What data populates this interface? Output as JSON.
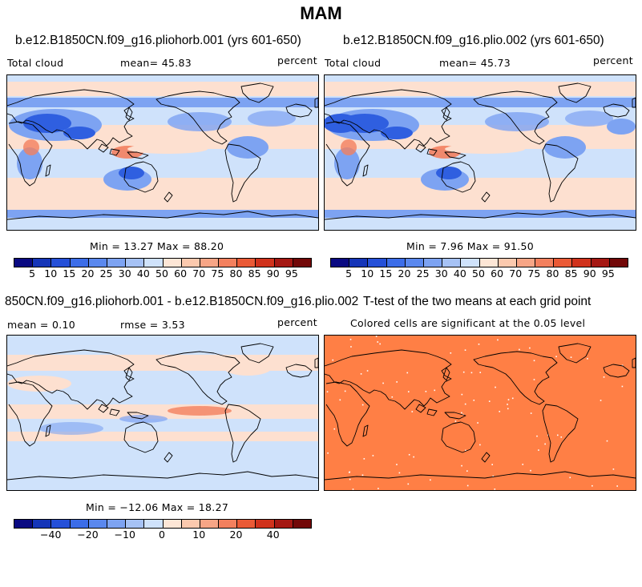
{
  "figure": {
    "title": "MAM"
  },
  "panels": {
    "p1": {
      "title": "b.e12.B1850CN.f09_g16.pliohorb.001 (yrs 601-650)",
      "left_label": "Total cloud",
      "center_label": "mean=  45.83",
      "right_label": "percent",
      "minmax": "Min =  13.27 Max =  88.20"
    },
    "p2": {
      "title": "b.e12.B1850CN.f09_g16.plio.002 (yrs 601-650)",
      "left_label": "Total cloud",
      "center_label": "mean=  45.73",
      "right_label": "percent",
      "minmax": "Min =   7.96 Max =  91.50"
    },
    "p3": {
      "title": "850CN.f09_g16.pliohorb.001 - b.e12.B1850CN.f09_g16.plio.002",
      "left_label": "mean =   0.10",
      "center_label": "rmse =   3.53",
      "right_label": "percent",
      "minmax": "Min = −12.06 Max =  18.27"
    },
    "p4": {
      "title": "T-test of the two means at each grid point",
      "subtitle": "Colored cells are significant at the 0.05 level"
    }
  },
  "colorbars": {
    "cloud": {
      "colors": [
        "#0a0a82",
        "#1535b8",
        "#2550d8",
        "#3c6de8",
        "#5a88ee",
        "#7da3f2",
        "#a6c2f5",
        "#cfe2fb",
        "#fde6d6",
        "#fbc9ae",
        "#f7a586",
        "#f3805e",
        "#ea5a36",
        "#d0321c",
        "#a51813",
        "#720808"
      ],
      "labels": [
        "5",
        "10",
        "15",
        "20",
        "25",
        "30",
        "40",
        "50",
        "60",
        "70",
        "75",
        "80",
        "85",
        "90",
        "95"
      ]
    },
    "diff": {
      "colors": [
        "#0a0a82",
        "#1535b8",
        "#2550d8",
        "#3c6de8",
        "#5a88ee",
        "#7da3f2",
        "#a6c2f5",
        "#cfe2fb",
        "#fde6d6",
        "#fbc9ae",
        "#f7a586",
        "#f3805e",
        "#ea5a36",
        "#d0321c",
        "#a51813",
        "#720808"
      ],
      "labels": [
        "−40",
        "−20",
        "−10",
        "0",
        "10",
        "20",
        "40"
      ]
    }
  },
  "map_colors": {
    "ocean_pale_red": "#fde0d0",
    "light_blue": "#cfe2fb",
    "mid_blue": "#7da3f2",
    "deep_blue": "#2f5fe0",
    "red": "#f3805e",
    "ttest_fill": "#ff7f45",
    "coast": "#000000"
  }
}
